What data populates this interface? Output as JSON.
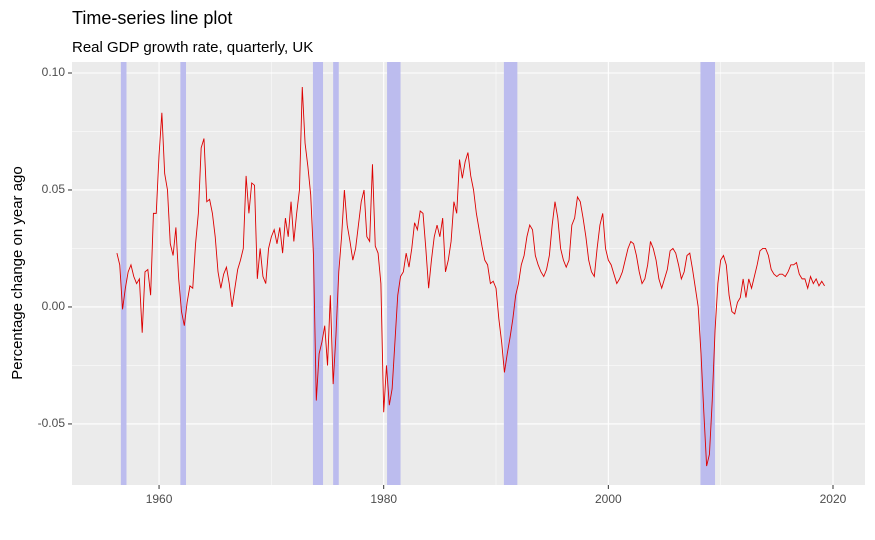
{
  "chart_data": {
    "type": "line",
    "title": "Time-series line plot",
    "subtitle": "Real GDP growth rate, quarterly, UK",
    "y_label": "Percentage change on year ago",
    "color": "#dd0000",
    "shade_color": "#bcbcee",
    "shaded_periods": [
      {
        "start": 1956.6,
        "end": 1957.1
      },
      {
        "start": 1961.9,
        "end": 1962.4
      },
      {
        "start": 1973.7,
        "end": 1974.6
      },
      {
        "start": 1975.5,
        "end": 1976.0
      },
      {
        "start": 1980.3,
        "end": 1981.5
      },
      {
        "start": 1990.7,
        "end": 1991.9
      },
      {
        "start": 2008.2,
        "end": 2009.5
      }
    ],
    "xlim": [
      1952.25,
      2022.85
    ],
    "ylim": [
      -0.0761,
      0.1047
    ],
    "xticks": [
      1960,
      1980,
      2000,
      2020
    ],
    "yticks": [
      {
        "value": -0.05,
        "label": "-0.05"
      },
      {
        "value": 0,
        "label": "0.00"
      },
      {
        "value": 0.05,
        "label": "0.05"
      },
      {
        "value": 0.1,
        "label": "0.10"
      }
    ],
    "grid": true,
    "x": [
      1956.25,
      1956.5,
      1956.75,
      1957,
      1957.25,
      1957.5,
      1957.75,
      1958,
      1958.25,
      1958.5,
      1958.75,
      1959,
      1959.25,
      1959.5,
      1959.75,
      1960,
      1960.25,
      1960.5,
      1960.75,
      1961,
      1961.25,
      1961.5,
      1961.75,
      1962,
      1962.25,
      1962.5,
      1962.75,
      1963,
      1963.25,
      1963.5,
      1963.75,
      1964,
      1964.25,
      1964.5,
      1964.75,
      1965,
      1965.25,
      1965.5,
      1965.75,
      1966,
      1966.25,
      1966.5,
      1966.75,
      1967,
      1967.25,
      1967.5,
      1967.75,
      1968,
      1968.25,
      1968.5,
      1968.75,
      1969,
      1969.25,
      1969.5,
      1969.75,
      1970,
      1970.25,
      1970.5,
      1970.75,
      1971,
      1971.25,
      1971.5,
      1971.75,
      1972,
      1972.25,
      1972.5,
      1972.75,
      1973,
      1973.25,
      1973.5,
      1973.75,
      1974,
      1974.25,
      1974.5,
      1974.75,
      1975,
      1975.25,
      1975.5,
      1975.75,
      1976,
      1976.25,
      1976.5,
      1976.75,
      1977,
      1977.25,
      1977.5,
      1977.75,
      1978,
      1978.25,
      1978.5,
      1978.75,
      1979,
      1979.25,
      1979.5,
      1979.75,
      1980,
      1980.25,
      1980.5,
      1980.75,
      1981,
      1981.25,
      1981.5,
      1981.75,
      1982,
      1982.25,
      1982.5,
      1982.75,
      1983,
      1983.25,
      1983.5,
      1983.75,
      1984,
      1984.25,
      1984.5,
      1984.75,
      1985,
      1985.25,
      1985.5,
      1985.75,
      1986,
      1986.25,
      1986.5,
      1986.75,
      1987,
      1987.25,
      1987.5,
      1987.75,
      1988,
      1988.25,
      1988.5,
      1988.75,
      1989,
      1989.25,
      1989.5,
      1989.75,
      1990,
      1990.25,
      1990.5,
      1990.75,
      1991,
      1991.25,
      1991.5,
      1991.75,
      1992,
      1992.25,
      1992.5,
      1992.75,
      1993,
      1993.25,
      1993.5,
      1993.75,
      1994,
      1994.25,
      1994.5,
      1994.75,
      1995,
      1995.25,
      1995.5,
      1995.75,
      1996,
      1996.25,
      1996.5,
      1996.75,
      1997,
      1997.25,
      1997.5,
      1997.75,
      1998,
      1998.25,
      1998.5,
      1998.75,
      1999,
      1999.25,
      1999.5,
      1999.75,
      2000,
      2000.25,
      2000.5,
      2000.75,
      2001,
      2001.25,
      2001.5,
      2001.75,
      2002,
      2002.25,
      2002.5,
      2002.75,
      2003,
      2003.25,
      2003.5,
      2003.75,
      2004,
      2004.25,
      2004.5,
      2004.75,
      2005,
      2005.25,
      2005.5,
      2005.75,
      2006,
      2006.25,
      2006.5,
      2006.75,
      2007,
      2007.25,
      2007.5,
      2007.75,
      2008,
      2008.25,
      2008.5,
      2008.75,
      2009,
      2009.25,
      2009.5,
      2009.75,
      2010,
      2010.25,
      2010.5,
      2010.75,
      2011,
      2011.25,
      2011.5,
      2011.75,
      2012,
      2012.25,
      2012.5,
      2012.75,
      2013,
      2013.25,
      2013.5,
      2013.75,
      2014,
      2014.25,
      2014.5,
      2014.75,
      2015,
      2015.25,
      2015.5,
      2015.75,
      2016,
      2016.25,
      2016.5,
      2016.75,
      2017,
      2017.25,
      2017.5,
      2017.75,
      2018,
      2018.25,
      2018.5,
      2018.75,
      2019,
      2019.25
    ],
    "values": [
      0.023,
      0.018,
      -0.001,
      0.008,
      0.015,
      0.018,
      0.013,
      0.01,
      0.012,
      -0.011,
      0.015,
      0.016,
      0.005,
      0.04,
      0.04,
      0.065,
      0.083,
      0.057,
      0.05,
      0.027,
      0.022,
      0.034,
      0.012,
      -0.002,
      -0.008,
      0.002,
      0.009,
      0.008,
      0.027,
      0.04,
      0.068,
      0.072,
      0.045,
      0.046,
      0.04,
      0.03,
      0.015,
      0.008,
      0.014,
      0.017,
      0.01,
      0.0,
      0.008,
      0.016,
      0.02,
      0.025,
      0.056,
      0.04,
      0.053,
      0.052,
      0.012,
      0.025,
      0.013,
      0.01,
      0.025,
      0.03,
      0.033,
      0.027,
      0.034,
      0.023,
      0.038,
      0.03,
      0.045,
      0.028,
      0.04,
      0.05,
      0.094,
      0.07,
      0.06,
      0.048,
      0.022,
      -0.04,
      -0.02,
      -0.015,
      -0.008,
      -0.025,
      0.005,
      -0.033,
      -0.012,
      0.015,
      0.03,
      0.05,
      0.035,
      0.028,
      0.02,
      0.025,
      0.035,
      0.045,
      0.05,
      0.03,
      0.028,
      0.061,
      0.026,
      0.023,
      0.01,
      -0.045,
      -0.025,
      -0.042,
      -0.035,
      -0.015,
      0.005,
      0.013,
      0.015,
      0.023,
      0.017,
      0.025,
      0.036,
      0.033,
      0.041,
      0.04,
      0.025,
      0.008,
      0.02,
      0.03,
      0.035,
      0.03,
      0.038,
      0.015,
      0.02,
      0.028,
      0.045,
      0.04,
      0.063,
      0.055,
      0.062,
      0.066,
      0.056,
      0.05,
      0.04,
      0.033,
      0.026,
      0.02,
      0.018,
      0.01,
      0.011,
      0.008,
      -0.005,
      -0.015,
      -0.028,
      -0.02,
      -0.013,
      -0.005,
      0.005,
      0.01,
      0.018,
      0.022,
      0.03,
      0.035,
      0.033,
      0.022,
      0.018,
      0.015,
      0.013,
      0.016,
      0.022,
      0.035,
      0.045,
      0.038,
      0.025,
      0.02,
      0.017,
      0.02,
      0.035,
      0.038,
      0.047,
      0.045,
      0.038,
      0.03,
      0.02,
      0.015,
      0.013,
      0.025,
      0.035,
      0.04,
      0.025,
      0.02,
      0.018,
      0.014,
      0.01,
      0.012,
      0.015,
      0.02,
      0.025,
      0.028,
      0.027,
      0.022,
      0.015,
      0.01,
      0.012,
      0.018,
      0.028,
      0.025,
      0.02,
      0.012,
      0.008,
      0.012,
      0.016,
      0.024,
      0.025,
      0.023,
      0.018,
      0.012,
      0.015,
      0.022,
      0.023,
      0.016,
      0.008,
      0.0,
      -0.02,
      -0.045,
      -0.068,
      -0.063,
      -0.04,
      -0.01,
      0.01,
      0.02,
      0.022,
      0.018,
      0.005,
      -0.002,
      -0.003,
      0.002,
      0.004,
      0.012,
      0.004,
      0.012,
      0.008,
      0.013,
      0.018,
      0.024,
      0.025,
      0.025,
      0.022,
      0.016,
      0.014,
      0.013,
      0.014,
      0.014,
      0.013,
      0.015,
      0.018,
      0.018,
      0.019,
      0.014,
      0.012,
      0.012,
      0.008,
      0.013,
      0.01,
      0.012,
      0.009,
      0.011,
      0.009
    ]
  }
}
